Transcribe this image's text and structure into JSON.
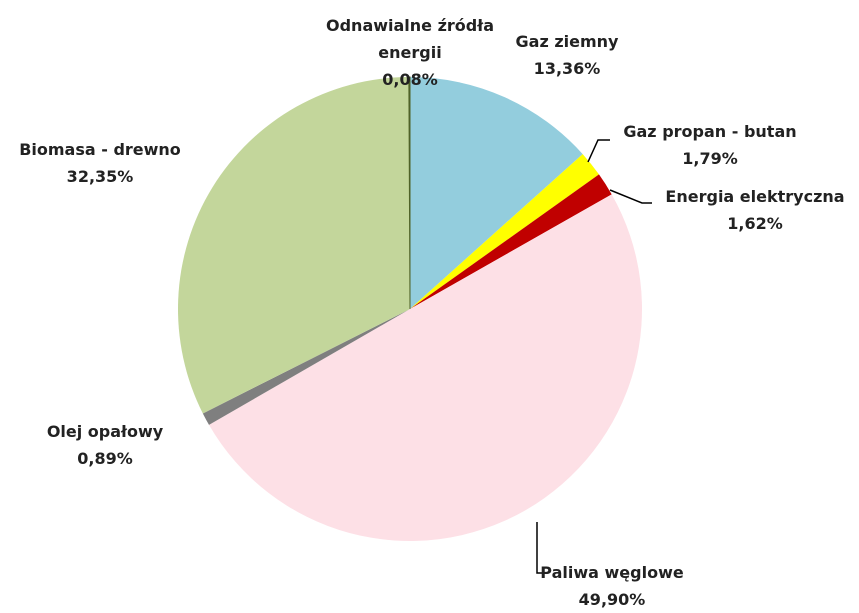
{
  "chart_data": {
    "type": "pie",
    "categories": [
      "Gaz ziemny",
      "Gaz propan - butan",
      "Energia elektryczna",
      "Paliwa węglowe",
      "Olej opałowy",
      "Biomasa - drewno",
      "Odnawialne źródła energii"
    ],
    "values": [
      13.36,
      1.79,
      1.62,
      49.9,
      0.89,
      32.35,
      0.08
    ],
    "value_labels": [
      "13,36%",
      "1,79%",
      "1,62%",
      "49,90%",
      "0,89%",
      "32,35%",
      "0,08%"
    ],
    "colors": [
      "#93cddd",
      "#ffff00",
      "#c00000",
      "#fde0e6",
      "#7f7f7f",
      "#c3d69b",
      "#4f6228"
    ]
  }
}
